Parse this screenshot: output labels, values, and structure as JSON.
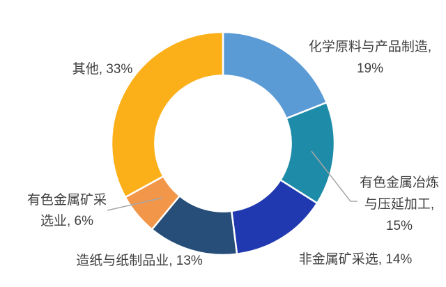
{
  "figure": {
    "background_color": "#FFFFFF"
  },
  "chart_data": {
    "type": "pie",
    "subtype": "donut",
    "title": "",
    "start_angle_deg": 0,
    "direction": "clockwise",
    "inner_radius_ratio": 0.61,
    "separator_color": "#FFFFFF",
    "label_color": "#3F3F3F",
    "leader_line_color": "#A6A6A6",
    "legend_position": "none",
    "segments": [
      {
        "name": "化学原料与产品制造",
        "value_pct": 19,
        "color": "#5B9BD5",
        "display_lines": [
          "化学原料与产品制造,",
          "19%"
        ]
      },
      {
        "name": "有色金属冶炼与压延加工",
        "value_pct": 15,
        "color": "#1E8CA8",
        "display_lines": [
          "有色金属冶炼",
          "与压延加工,",
          "15%"
        ]
      },
      {
        "name": "非金属矿采选",
        "value_pct": 14,
        "color": "#2039B0",
        "display_lines": [
          "非金属矿采选, 14%"
        ]
      },
      {
        "name": "造纸与纸制品业",
        "value_pct": 13,
        "color": "#264E78",
        "display_lines": [
          "造纸与纸制品业, 13%"
        ]
      },
      {
        "name": "有色金属矿采选业",
        "value_pct": 6,
        "color": "#F2964A",
        "display_lines": [
          "有色金属矿采",
          "选业, 6%"
        ]
      },
      {
        "name": "其他",
        "value_pct": 33,
        "color": "#FBB019",
        "display_lines": [
          "其他, 33%"
        ]
      }
    ]
  }
}
